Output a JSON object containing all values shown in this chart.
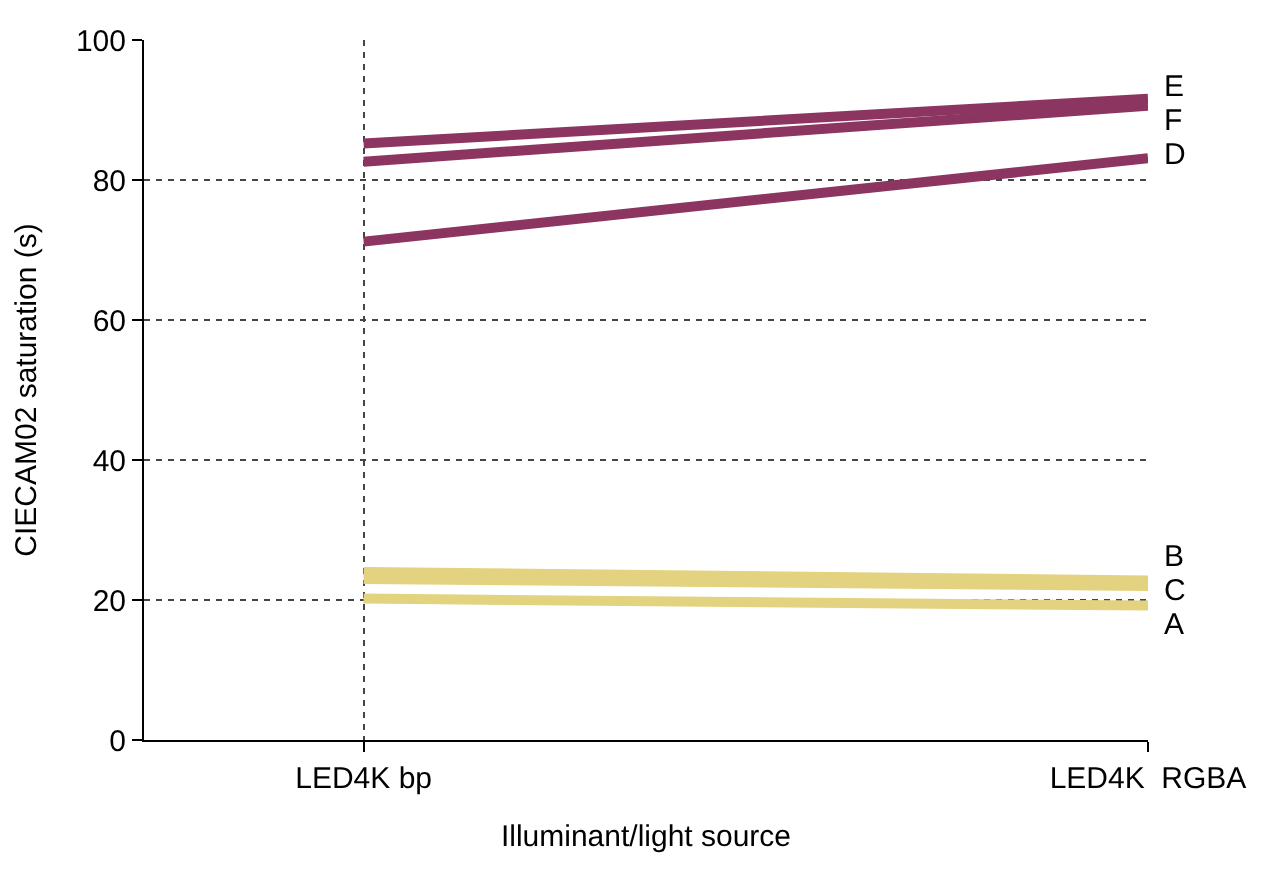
{
  "chart_data": {
    "type": "line",
    "xlabel": "Illuminant/light source",
    "ylabel": "CIECAM02 saturation (s)",
    "categories": [
      "LED4K bp",
      "LED4K  RGBA"
    ],
    "ylim": [
      0,
      100
    ],
    "yticks": [
      0,
      20,
      40,
      60,
      80,
      100
    ],
    "grid": true,
    "legend": false,
    "marker": "none",
    "line_style": "solid",
    "series": [
      {
        "name": "E",
        "color": "#8b3560",
        "values": [
          85.2,
          91.6
        ]
      },
      {
        "name": "F",
        "color": "#8b3560",
        "values": [
          82.6,
          90.6
        ]
      },
      {
        "name": "D",
        "color": "#8b3560",
        "values": [
          71.2,
          83.1
        ]
      },
      {
        "name": "B",
        "color": "#e3d27f",
        "values": [
          24.0,
          22.8
        ]
      },
      {
        "name": "C",
        "color": "#e3d27f",
        "values": [
          23.0,
          22.0
        ]
      },
      {
        "name": "A",
        "color": "#e3d27f",
        "values": [
          20.2,
          19.2
        ]
      }
    ]
  }
}
